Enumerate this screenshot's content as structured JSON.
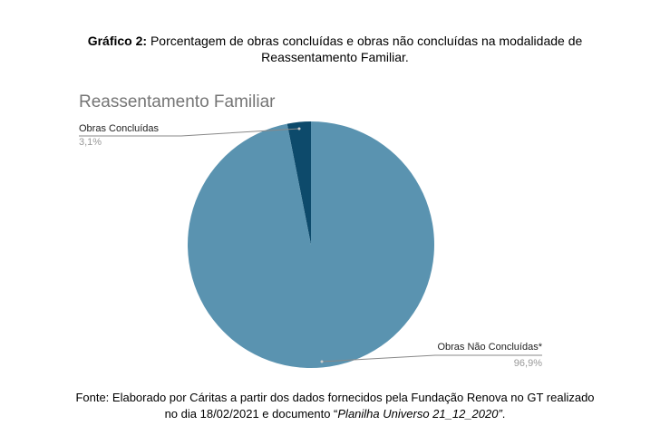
{
  "caption": {
    "label": "Gráfico 2:",
    "lines": [
      "Porcentagem de obras concluídas e obras não concluídas na modalidade de",
      "Reassentamento Familiar."
    ]
  },
  "chart_data": {
    "type": "pie",
    "title": "Reassentamento Familiar",
    "categories": [
      "Obras Concluídas",
      "Obras Não Concluídas*"
    ],
    "values": [
      3.1,
      96.9
    ],
    "value_labels": [
      "3,1%",
      "96,9%"
    ],
    "colors": [
      "#0d4a6b",
      "#5a93b0"
    ]
  },
  "source": {
    "lines": [
      "Fonte: Elaborado por Cáritas a partir dos dados fornecidos pela Fundação Renova no GT realizado",
      "no dia 18/02/2021 e documento “"
    ],
    "italic": "Planilha Universo 21_12_2020”",
    "end": "."
  }
}
